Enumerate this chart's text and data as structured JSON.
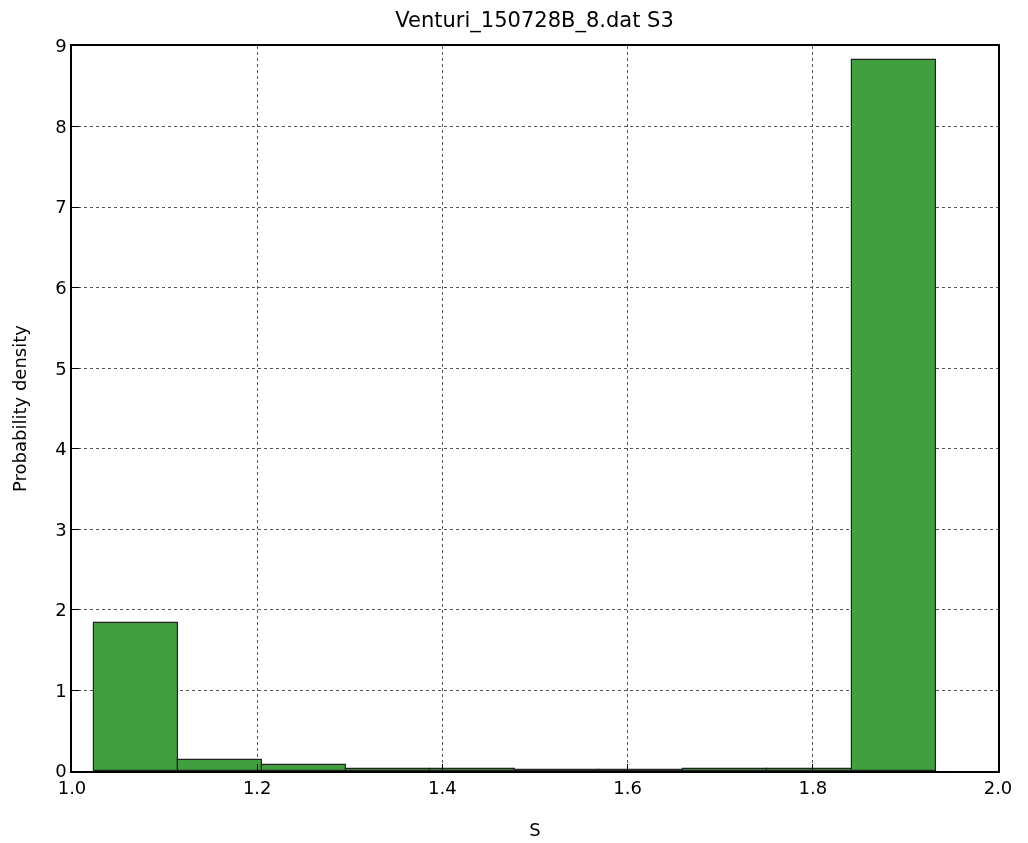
{
  "chart_data": {
    "type": "histogram",
    "title": "Venturi_150728B_8.dat S3",
    "xlabel": "S",
    "ylabel": "Probability density",
    "bins": [
      1.024,
      1.115,
      1.205,
      1.296,
      1.387,
      1.478,
      1.569,
      1.66,
      1.751,
      1.842,
      1.933
    ],
    "values": [
      1.84,
      0.14,
      0.08,
      0.02,
      0.02,
      0.01,
      0.01,
      0.03,
      0.03,
      8.83
    ],
    "color": "#40a040",
    "xlim": [
      1.0,
      2.0
    ],
    "xticks": [
      {
        "value": 1.0,
        "label": "1.0"
      },
      1.2,
      1.4,
      1.6,
      1.8,
      {
        "value": 2.0,
        "label": "2.0"
      }
    ],
    "ylim": [
      0,
      9
    ],
    "yticks": [
      0,
      1,
      2,
      3,
      4,
      5,
      6,
      7,
      8,
      9
    ],
    "grid": true
  }
}
